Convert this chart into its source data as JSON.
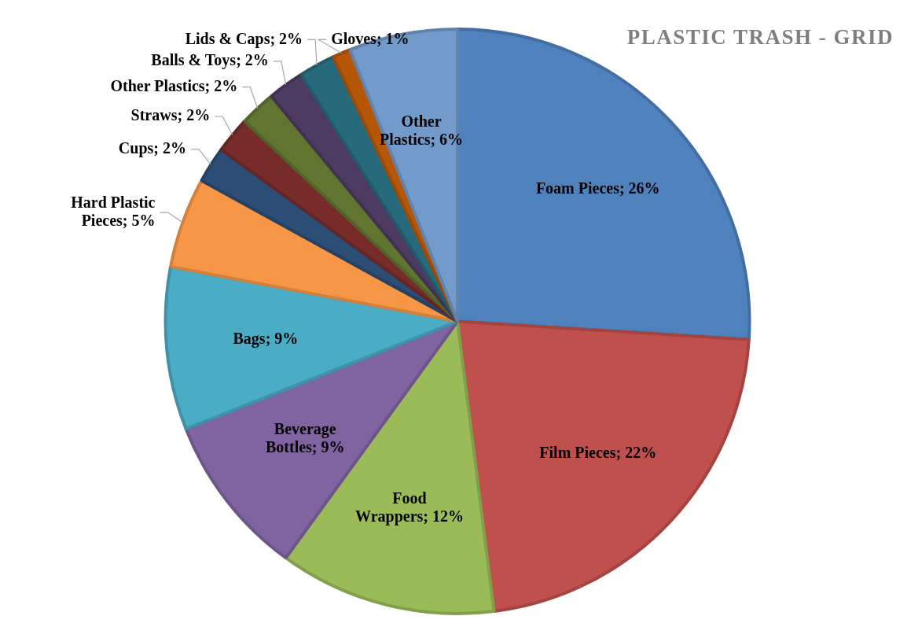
{
  "chart_data": {
    "type": "pie",
    "title": "PLASTIC TRASH - GRID",
    "categories": [
      "Foam Pieces",
      "Film Pieces",
      "Food Wrappers",
      "Beverage Bottles",
      "Bags",
      "Hard Plastic Pieces",
      "Cups",
      "Straws",
      "Other Plastics",
      "Balls & Toys",
      "Lids & Caps",
      "Gloves",
      "Other Plastics"
    ],
    "values": [
      26,
      22,
      12,
      9,
      9,
      5,
      2,
      2,
      2,
      2,
      2,
      1,
      6
    ],
    "value_labels": [
      "26%",
      "22%",
      "12%",
      "9%",
      "9%",
      "5%",
      "2%",
      "2%",
      "2%",
      "2%",
      "2%",
      "1%",
      "6%"
    ],
    "colors": [
      "#4f81bd",
      "#c0504d",
      "#9bbb59",
      "#8064a2",
      "#4bacc6",
      "#f79646",
      "#2c4d75",
      "#772c2a",
      "#5f7530",
      "#4d3b62",
      "#276a7c",
      "#b65708",
      "#729aca"
    ],
    "legend": false
  }
}
